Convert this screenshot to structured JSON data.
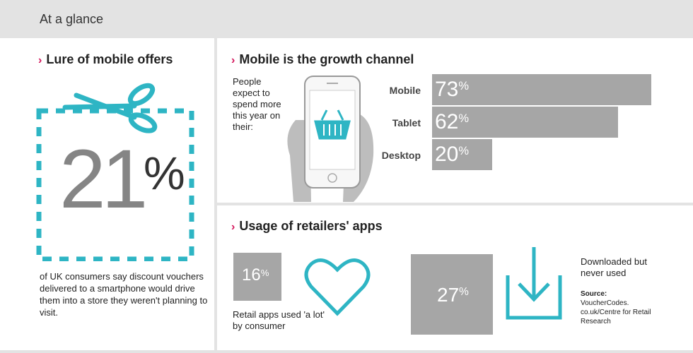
{
  "header": {
    "title": "At a glance"
  },
  "lure": {
    "title": "Lure of mobile offers",
    "big_number": "21",
    "big_unit": "%",
    "caption": "of UK consumers say discount vouchers delivered to a smartphone would drive them into a store they weren't planning to visit."
  },
  "growth": {
    "title": "Mobile is the growth channel",
    "intro": "People expect to spend more this year on their:"
  },
  "chart_data": {
    "type": "bar",
    "orientation": "horizontal",
    "categories": [
      "Mobile",
      "Tablet",
      "Desktop"
    ],
    "values": [
      73,
      62,
      20
    ],
    "value_labels": [
      "73",
      "62",
      "20"
    ],
    "unit": "%"
  },
  "apps": {
    "title": "Usage of retailers' apps",
    "stat1_value": "16",
    "stat1_unit": "%",
    "stat1_caption": "Retail apps used 'a lot' by consumer",
    "stat2_value": "27",
    "stat2_unit": "%",
    "stat2_caption": "Downloaded but never used",
    "source_label": "Source:",
    "source_text": "VoucherCodes. co.uk/Centre for Retail Research"
  },
  "colors": {
    "accent": "#2eb5c4",
    "chevron": "#d4145a",
    "bar": "#a6a6a6",
    "header_bg": "#e3e3e3"
  },
  "icons": [
    "scissors-icon",
    "dashed-coupon-icon",
    "phone-in-hand-icon",
    "shopping-basket-icon",
    "heart-icon",
    "download-icon",
    "chevron-right-icon"
  ]
}
